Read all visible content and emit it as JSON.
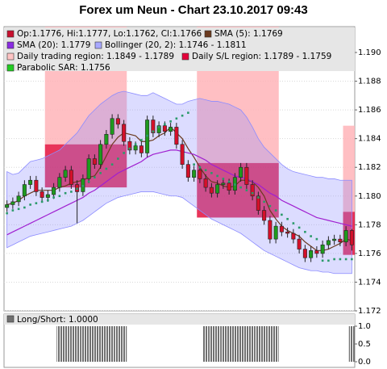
{
  "chart_data": {
    "type": "candlestick",
    "title": "Forex um Neun - Chart 23.10.2017 09:43",
    "ylim": [
      1.172,
      1.1918
    ],
    "yticks": [
      1.172,
      1.174,
      1.176,
      1.178,
      {
        "value": 1.18,
        "label": "1.180"
      },
      1.182,
      1.184,
      1.186,
      1.188,
      {
        "value": 1.19,
        "label": "1.190"
      }
    ],
    "grid": true,
    "up_color": "#1e9a1e",
    "down_color": "#d4102a",
    "open": [
      1.1792,
      1.1794,
      1.1796,
      1.18,
      1.1808,
      1.1811,
      1.1803,
      1.1799,
      1.1801,
      1.1806,
      1.1813,
      1.1818,
      1.1808,
      1.1803,
      1.1812,
      1.1826,
      1.1822,
      1.1836,
      1.1843,
      1.1854,
      1.185,
      1.1838,
      1.1832,
      1.1835,
      1.183,
      1.1853,
      1.1844,
      1.1849,
      1.1845,
      1.1848,
      1.1836,
      1.1822,
      1.1813,
      1.1818,
      1.1812,
      1.1806,
      1.1802,
      1.1808,
      1.1809,
      1.1804,
      1.1813,
      1.182,
      1.1808,
      1.18,
      1.179,
      1.1783,
      1.177,
      1.1779,
      1.1775,
      1.1774,
      1.177,
      1.1763,
      1.1757,
      1.1762,
      1.176,
      1.1766,
      1.1769,
      1.177,
      1.1768,
      1.1776
    ],
    "high": [
      1.1797,
      1.1799,
      1.1803,
      1.1811,
      1.1814,
      1.1814,
      1.1806,
      1.1804,
      1.1809,
      1.1816,
      1.1821,
      1.1821,
      1.1811,
      1.1815,
      1.1829,
      1.1829,
      1.1839,
      1.1846,
      1.1857,
      1.1857,
      1.1853,
      1.1841,
      1.1838,
      1.1838,
      1.1856,
      1.1856,
      1.1852,
      1.1852,
      1.1851,
      1.1851,
      1.1839,
      1.1825,
      1.1821,
      1.1821,
      1.1815,
      1.1809,
      1.1811,
      1.1812,
      1.1812,
      1.1816,
      1.1823,
      1.1823,
      1.1811,
      1.1803,
      1.1793,
      1.1786,
      1.1782,
      1.1782,
      1.1778,
      1.1777,
      1.1773,
      1.1766,
      1.1765,
      1.1765,
      1.1769,
      1.1772,
      1.1773,
      1.1773,
      1.1779,
      1.1777
    ],
    "low": [
      1.1789,
      1.1791,
      1.1793,
      1.1797,
      1.1805,
      1.18,
      1.1796,
      1.1796,
      1.1798,
      1.1803,
      1.181,
      1.1805,
      1.1781,
      1.18,
      1.1809,
      1.1819,
      1.1819,
      1.1833,
      1.184,
      1.1847,
      1.1835,
      1.1829,
      1.1829,
      1.1827,
      1.1827,
      1.1841,
      1.1841,
      1.1842,
      1.1842,
      1.1833,
      1.1819,
      1.181,
      1.181,
      1.1809,
      1.1803,
      1.1799,
      1.1799,
      1.1805,
      1.1801,
      1.1801,
      1.181,
      1.1805,
      1.1797,
      1.1787,
      1.178,
      1.1767,
      1.1767,
      1.1772,
      1.1771,
      1.1767,
      1.176,
      1.1754,
      1.1754,
      1.1757,
      1.1757,
      1.1763,
      1.1766,
      1.1765,
      1.1765,
      1.1762
    ],
    "close": [
      1.1794,
      1.1796,
      1.18,
      1.1808,
      1.1811,
      1.1803,
      1.1799,
      1.1801,
      1.1806,
      1.1813,
      1.1818,
      1.1808,
      1.1803,
      1.1812,
      1.1826,
      1.1822,
      1.1836,
      1.1843,
      1.1854,
      1.185,
      1.1838,
      1.1832,
      1.1835,
      1.183,
      1.1853,
      1.1844,
      1.1849,
      1.1845,
      1.1848,
      1.1836,
      1.1822,
      1.1813,
      1.1818,
      1.1812,
      1.1806,
      1.1802,
      1.1808,
      1.1809,
      1.1804,
      1.1813,
      1.182,
      1.1808,
      1.18,
      1.179,
      1.1783,
      1.177,
      1.1779,
      1.1775,
      1.1774,
      1.177,
      1.1763,
      1.1757,
      1.1762,
      1.176,
      1.1766,
      1.1769,
      1.177,
      1.1768,
      1.1776,
      1.1766
    ],
    "band": {
      "color": "#8c8cff",
      "upper": [
        1.1817,
        1.1815,
        1.1816,
        1.182,
        1.1824,
        1.1825,
        1.1826,
        1.1828,
        1.183,
        1.1832,
        1.1836,
        1.184,
        1.1844,
        1.185,
        1.1856,
        1.186,
        1.1864,
        1.1867,
        1.187,
        1.1872,
        1.1873,
        1.1872,
        1.1871,
        1.187,
        1.187,
        1.1872,
        1.187,
        1.1868,
        1.1866,
        1.1864,
        1.1864,
        1.1866,
        1.1867,
        1.1868,
        1.1867,
        1.1866,
        1.1866,
        1.1865,
        1.1864,
        1.1862,
        1.186,
        1.1855,
        1.1848,
        1.184,
        1.1834,
        1.183,
        1.1826,
        1.1822,
        1.1819,
        1.1817,
        1.1816,
        1.1815,
        1.1814,
        1.1813,
        1.1813,
        1.1812,
        1.1812,
        1.1811,
        1.1811,
        1.1811
      ],
      "lower": [
        1.1764,
        1.1766,
        1.1768,
        1.177,
        1.1772,
        1.1773,
        1.1774,
        1.1775,
        1.1776,
        1.1777,
        1.1778,
        1.1779,
        1.1781,
        1.1783,
        1.1786,
        1.1789,
        1.1792,
        1.1795,
        1.1797,
        1.1799,
        1.18,
        1.1801,
        1.1802,
        1.1803,
        1.1803,
        1.1803,
        1.1802,
        1.1801,
        1.18,
        1.18,
        1.1799,
        1.1796,
        1.1793,
        1.179,
        1.1787,
        1.1784,
        1.1782,
        1.178,
        1.1778,
        1.1776,
        1.1774,
        1.1771,
        1.1768,
        1.1765,
        1.1762,
        1.176,
        1.1758,
        1.1756,
        1.1754,
        1.1752,
        1.175,
        1.1749,
        1.1748,
        1.1748,
        1.1747,
        1.1747,
        1.1746,
        1.1746,
        1.1746,
        1.1746
      ]
    },
    "series": [
      {
        "color": "#6b3a1e",
        "style": "line",
        "values": [
          1.1794,
          1.1795,
          1.1797,
          1.18,
          1.1802,
          1.1804,
          1.1804,
          1.1804,
          1.1804,
          1.1806,
          1.1807,
          1.1809,
          1.181,
          1.1811,
          1.1813,
          1.1814,
          1.182,
          1.1828,
          1.1836,
          1.1841,
          1.1844,
          1.1843,
          1.1842,
          1.1838,
          1.1838,
          1.1839,
          1.1842,
          1.1844,
          1.1848,
          1.1844,
          1.184,
          1.1833,
          1.1827,
          1.182,
          1.1814,
          1.181,
          1.1809,
          1.1807,
          1.1806,
          1.1807,
          1.1811,
          1.1811,
          1.181,
          1.1806,
          1.18,
          1.179,
          1.1784,
          1.1779,
          1.1776,
          1.1774,
          1.1772,
          1.1768,
          1.1765,
          1.1762,
          1.1762,
          1.1763,
          1.1765,
          1.1767,
          1.177,
          1.1769
        ]
      },
      {
        "color": "#a020d0",
        "style": "line",
        "values": [
          1.1773,
          1.1775,
          1.1777,
          1.1779,
          1.1781,
          1.1783,
          1.1785,
          1.1787,
          1.1789,
          1.1791,
          1.1793,
          1.1795,
          1.1797,
          1.1799,
          1.1802,
          1.1804,
          1.1807,
          1.181,
          1.1813,
          1.1816,
          1.1818,
          1.182,
          1.1822,
          1.1824,
          1.1827,
          1.1829,
          1.183,
          1.1831,
          1.1832,
          1.1832,
          1.1831,
          1.183,
          1.1829,
          1.1827,
          1.1825,
          1.1822,
          1.182,
          1.1818,
          1.1816,
          1.1814,
          1.1813,
          1.1812,
          1.181,
          1.1808,
          1.1805,
          1.1802,
          1.18,
          1.1797,
          1.1795,
          1.1793,
          1.1791,
          1.1789,
          1.1787,
          1.1785,
          1.1784,
          1.1783,
          1.1782,
          1.1781,
          1.178,
          1.1779
        ]
      },
      {
        "color": "#2a9a6a",
        "style": "dots",
        "values": [
          1.1788,
          1.179,
          1.1791,
          1.1792,
          1.1794,
          1.1795,
          1.1796,
          1.1797,
          1.1799,
          1.18,
          1.1802,
          1.1803,
          1.1805,
          1.1807,
          1.181,
          1.1813,
          1.1816,
          1.1819,
          1.1822,
          1.1826,
          1.183,
          1.1833,
          1.1836,
          1.1839,
          1.1842,
          1.1845,
          1.1848,
          1.185,
          1.1852,
          1.1854,
          1.1856,
          1.1858,
          1.1822,
          1.182,
          1.1818,
          1.1816,
          1.1814,
          1.1812,
          1.181,
          1.1808,
          1.1806,
          1.1804,
          1.1802,
          1.1799,
          1.1796,
          1.1793,
          1.179,
          1.1787,
          1.1784,
          1.1781,
          1.1778,
          1.1775,
          1.1772,
          1.177,
          1.1755,
          1.1755,
          1.1756,
          1.1756,
          1.1756,
          1.1756
        ]
      }
    ],
    "regions": [
      {
        "color": "#ffb4b8",
        "start": 7,
        "end": 20,
        "low": 1.1836,
        "high": 1.192
      },
      {
        "color": "#ffb4b8",
        "start": 33,
        "end": 46,
        "low": 1.1823,
        "high": 1.192
      },
      {
        "color": "#ffb4b8",
        "start": 58,
        "end": 59,
        "low": 1.1789,
        "high": 1.1849
      },
      {
        "color": "#e4103c",
        "start": 7,
        "end": 20,
        "low": 1.1806,
        "high": 1.1836
      },
      {
        "color": "#e4103c",
        "start": 33,
        "end": 46,
        "low": 1.1785,
        "high": 1.1823
      },
      {
        "color": "#e4103c",
        "start": 58,
        "end": 59,
        "low": 1.1759,
        "high": 1.1789
      }
    ],
    "legend": [
      {
        "label": "Op:1.1776, Hi:1.1777, Lo:1.1762, Cl:1.1766",
        "color": "#c8102e"
      },
      {
        "label": "SMA (5): 1.1769",
        "color": "#6b3a1e"
      },
      {
        "label": "SMA (20): 1.1779",
        "color": "#8a2be2"
      },
      {
        "label": "Bollinger (20, 2): 1.1746 - 1.1811",
        "color": "#a8a8ff"
      },
      {
        "label": "Daily trading region: 1.1849 - 1.1789",
        "color": "#ffc4c4"
      },
      {
        "label": "Daily S/L region: 1.1789 - 1.1759",
        "color": "#e4003a"
      },
      {
        "label": "Parabolic SAR: 1.1756",
        "color": "#22cc22"
      }
    ],
    "long_short": {
      "title": "Long/Short: 1.0000",
      "color": "#707070",
      "ylim": [
        0,
        1
      ],
      "yticks": [
        {
          "value": 0,
          "label": "0.0"
        },
        {
          "value": 0.5,
          "label": "0.5"
        },
        {
          "value": 1,
          "label": "1.0"
        }
      ],
      "values": [
        0,
        0,
        0,
        0,
        0,
        0,
        0,
        0,
        0,
        1,
        1,
        1,
        1,
        1,
        1,
        1,
        1,
        1,
        1,
        1,
        1,
        0,
        0,
        0,
        0,
        0,
        0,
        0,
        0,
        0,
        0,
        0,
        0,
        0,
        1,
        1,
        1,
        1,
        1,
        1,
        1,
        1,
        1,
        1,
        1,
        1,
        1,
        0,
        0,
        0,
        0,
        0,
        0,
        0,
        0,
        0,
        0,
        0,
        0,
        1
      ]
    }
  }
}
